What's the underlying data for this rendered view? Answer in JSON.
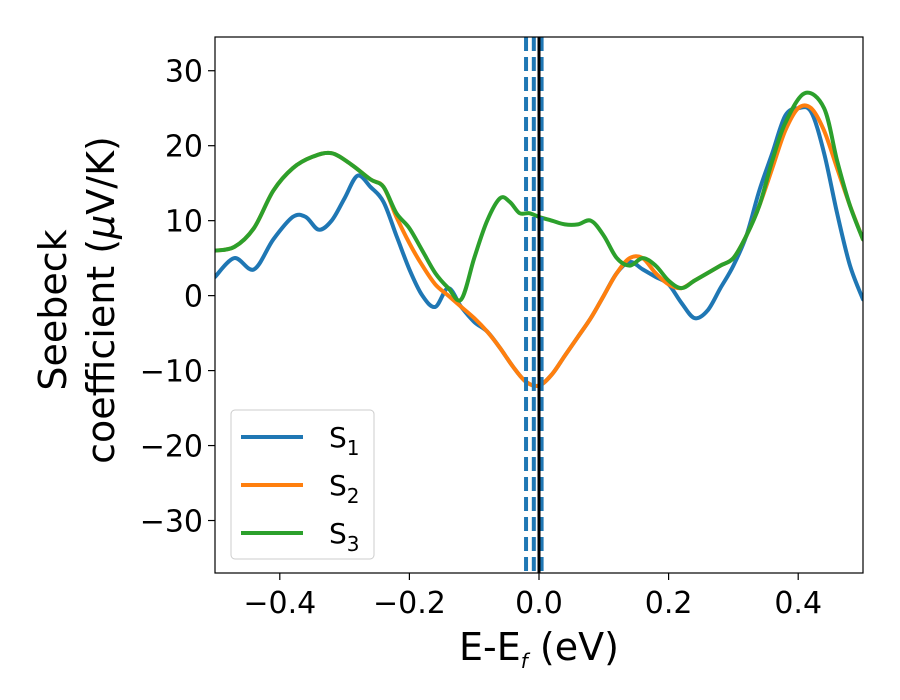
{
  "chart_data": {
    "type": "line",
    "xlabel_main": "E-E",
    "xlabel_sub": "f",
    "xlabel_unit": " (eV)",
    "ylabel_line1": "Seebeck",
    "ylabel_line2a": "coefficient  (",
    "ylabel_mu": "μ",
    "ylabel_line2b": "V/K)",
    "xlim": [
      -0.5,
      0.5
    ],
    "ylim": [
      -37,
      34.5
    ],
    "xticks": [
      -0.4,
      -0.2,
      0.0,
      0.2,
      0.4
    ],
    "xtick_labels": [
      "−0.4",
      "−0.2",
      "0.0",
      "0.2",
      "0.4"
    ],
    "yticks": [
      -30,
      -20,
      -10,
      0,
      10,
      20,
      30
    ],
    "ytick_labels": [
      "−30",
      "−20",
      "−10",
      "0",
      "10",
      "20",
      "30"
    ],
    "grid": false,
    "legend_position": "lower-left",
    "vlines": [
      {
        "x": 0.0,
        "style": "solid",
        "color": "#000000"
      },
      {
        "x": -0.02,
        "style": "dashed",
        "color": "#1f77b4"
      },
      {
        "x": -0.008,
        "style": "dashed",
        "color": "#1f77b4"
      },
      {
        "x": 0.004,
        "style": "dashed",
        "color": "#1f77b4"
      }
    ],
    "series": [
      {
        "name_main": "S",
        "name_sub": "1",
        "color": "#1f77b4",
        "x": [
          -0.5,
          -0.47,
          -0.44,
          -0.41,
          -0.38,
          -0.36,
          -0.34,
          -0.32,
          -0.3,
          -0.28,
          -0.26,
          -0.24,
          -0.22,
          -0.2,
          -0.18,
          -0.16,
          -0.14,
          -0.12,
          -0.1,
          -0.08,
          -0.06,
          -0.04,
          -0.02,
          0.0,
          0.02,
          0.04,
          0.06,
          0.08,
          0.1,
          0.12,
          0.14,
          0.16,
          0.18,
          0.2,
          0.22,
          0.24,
          0.26,
          0.28,
          0.3,
          0.32,
          0.34,
          0.36,
          0.38,
          0.4,
          0.42,
          0.44,
          0.46,
          0.48,
          0.5
        ],
        "y": [
          2.5,
          5,
          3.5,
          7.5,
          10.5,
          10.5,
          8.8,
          10,
          13,
          16,
          14.5,
          12.5,
          8,
          3.5,
          0,
          -1.5,
          1,
          -1.5,
          -3.5,
          -4.8,
          -7,
          -9.5,
          -11.5,
          -12,
          -10.5,
          -8,
          -5.5,
          -3,
          0,
          3,
          4.5,
          3.5,
          2.5,
          1.5,
          -1,
          -3,
          -2,
          1,
          4,
          8,
          14,
          19,
          24,
          25,
          24.5,
          19,
          11,
          4,
          -0.5
        ]
      },
      {
        "name_main": "S",
        "name_sub": "2",
        "color": "#ff7f0e",
        "x": [
          -0.5,
          -0.47,
          -0.44,
          -0.41,
          -0.38,
          -0.35,
          -0.32,
          -0.29,
          -0.26,
          -0.24,
          -0.22,
          -0.2,
          -0.18,
          -0.16,
          -0.14,
          -0.12,
          -0.1,
          -0.08,
          -0.06,
          -0.04,
          -0.02,
          0.0,
          0.02,
          0.04,
          0.06,
          0.08,
          0.1,
          0.12,
          0.14,
          0.16,
          0.18,
          0.2,
          0.22,
          0.24,
          0.26,
          0.28,
          0.3,
          0.32,
          0.34,
          0.36,
          0.38,
          0.4,
          0.42,
          0.44,
          0.46,
          0.48,
          0.5
        ],
        "y": [
          6,
          6.5,
          9,
          14,
          17,
          18.5,
          19,
          17.5,
          15.5,
          14.5,
          10.5,
          7,
          4,
          1.5,
          0,
          -1.5,
          -3,
          -4.8,
          -7,
          -9.5,
          -11.5,
          -12,
          -10.5,
          -8,
          -5.5,
          -3,
          0,
          3,
          5,
          5,
          3,
          1.5,
          1,
          2,
          3,
          4,
          5,
          8,
          12,
          17,
          22,
          25,
          25,
          22,
          17,
          12,
          7.5
        ]
      },
      {
        "name_main": "S",
        "name_sub": "3",
        "color": "#2ca02c",
        "x": [
          -0.5,
          -0.47,
          -0.44,
          -0.41,
          -0.38,
          -0.35,
          -0.32,
          -0.29,
          -0.26,
          -0.24,
          -0.22,
          -0.2,
          -0.18,
          -0.16,
          -0.14,
          -0.12,
          -0.1,
          -0.08,
          -0.06,
          -0.045,
          -0.03,
          -0.015,
          0.0,
          0.02,
          0.04,
          0.06,
          0.08,
          0.1,
          0.12,
          0.14,
          0.16,
          0.18,
          0.2,
          0.22,
          0.24,
          0.26,
          0.28,
          0.3,
          0.32,
          0.34,
          0.36,
          0.38,
          0.41,
          0.44,
          0.46,
          0.48,
          0.5
        ],
        "y": [
          6,
          6.5,
          9,
          14,
          17,
          18.5,
          19,
          17.5,
          15.5,
          14.5,
          11,
          9,
          6,
          3,
          1,
          -0.5,
          5,
          10,
          13,
          12.5,
          11,
          11,
          10.5,
          10,
          9.5,
          9.5,
          10,
          8,
          5,
          4,
          5,
          4,
          2,
          1,
          2,
          3,
          4,
          5,
          8,
          12,
          18,
          23,
          27,
          25,
          18,
          12,
          7.5
        ]
      }
    ]
  }
}
